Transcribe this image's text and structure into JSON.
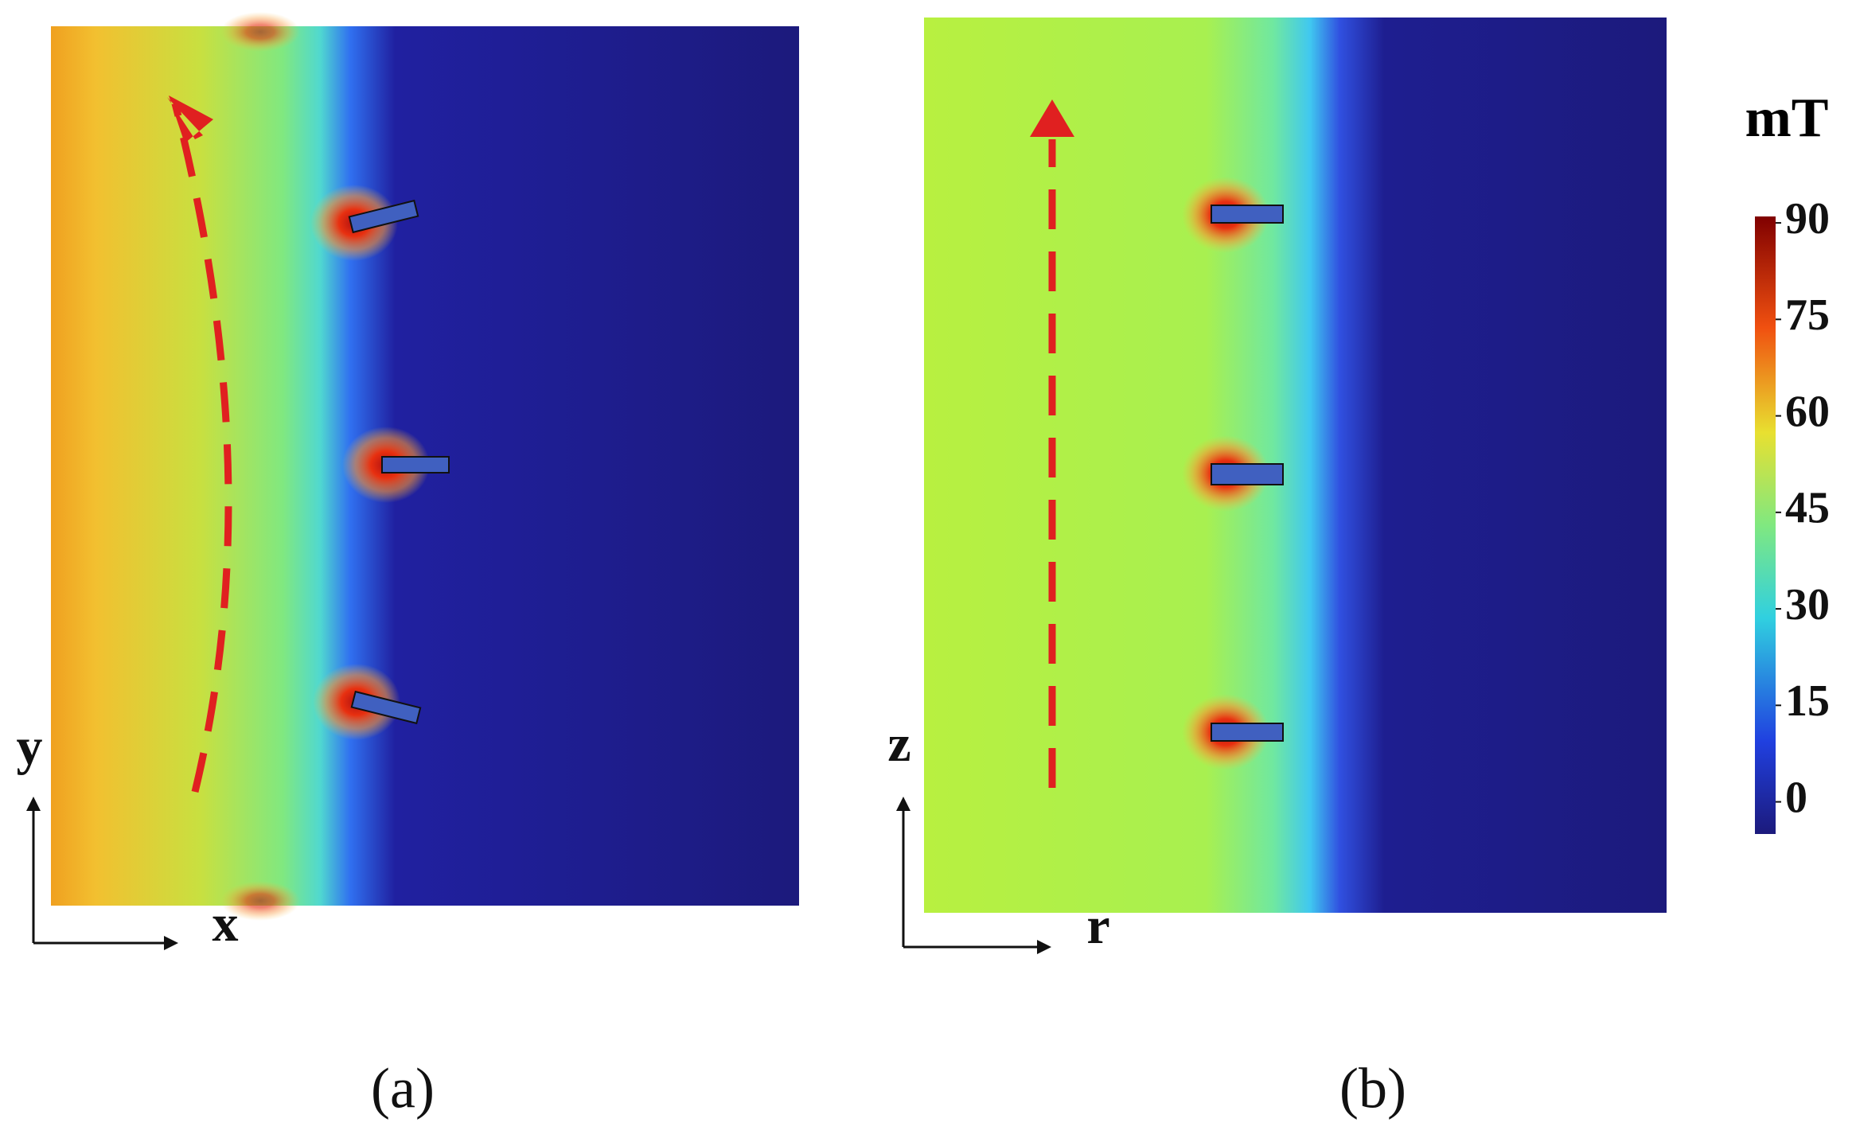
{
  "panels": [
    {
      "label": "(a)",
      "x_axis": "x",
      "y_axis": "y"
    },
    {
      "label": "(b)",
      "x_axis": "r",
      "y_axis": "z"
    }
  ],
  "colorbar": {
    "unit": "mT",
    "lim": [
      -5,
      91
    ],
    "ticks": [
      0,
      15,
      30,
      45,
      60,
      75,
      90
    ]
  }
}
